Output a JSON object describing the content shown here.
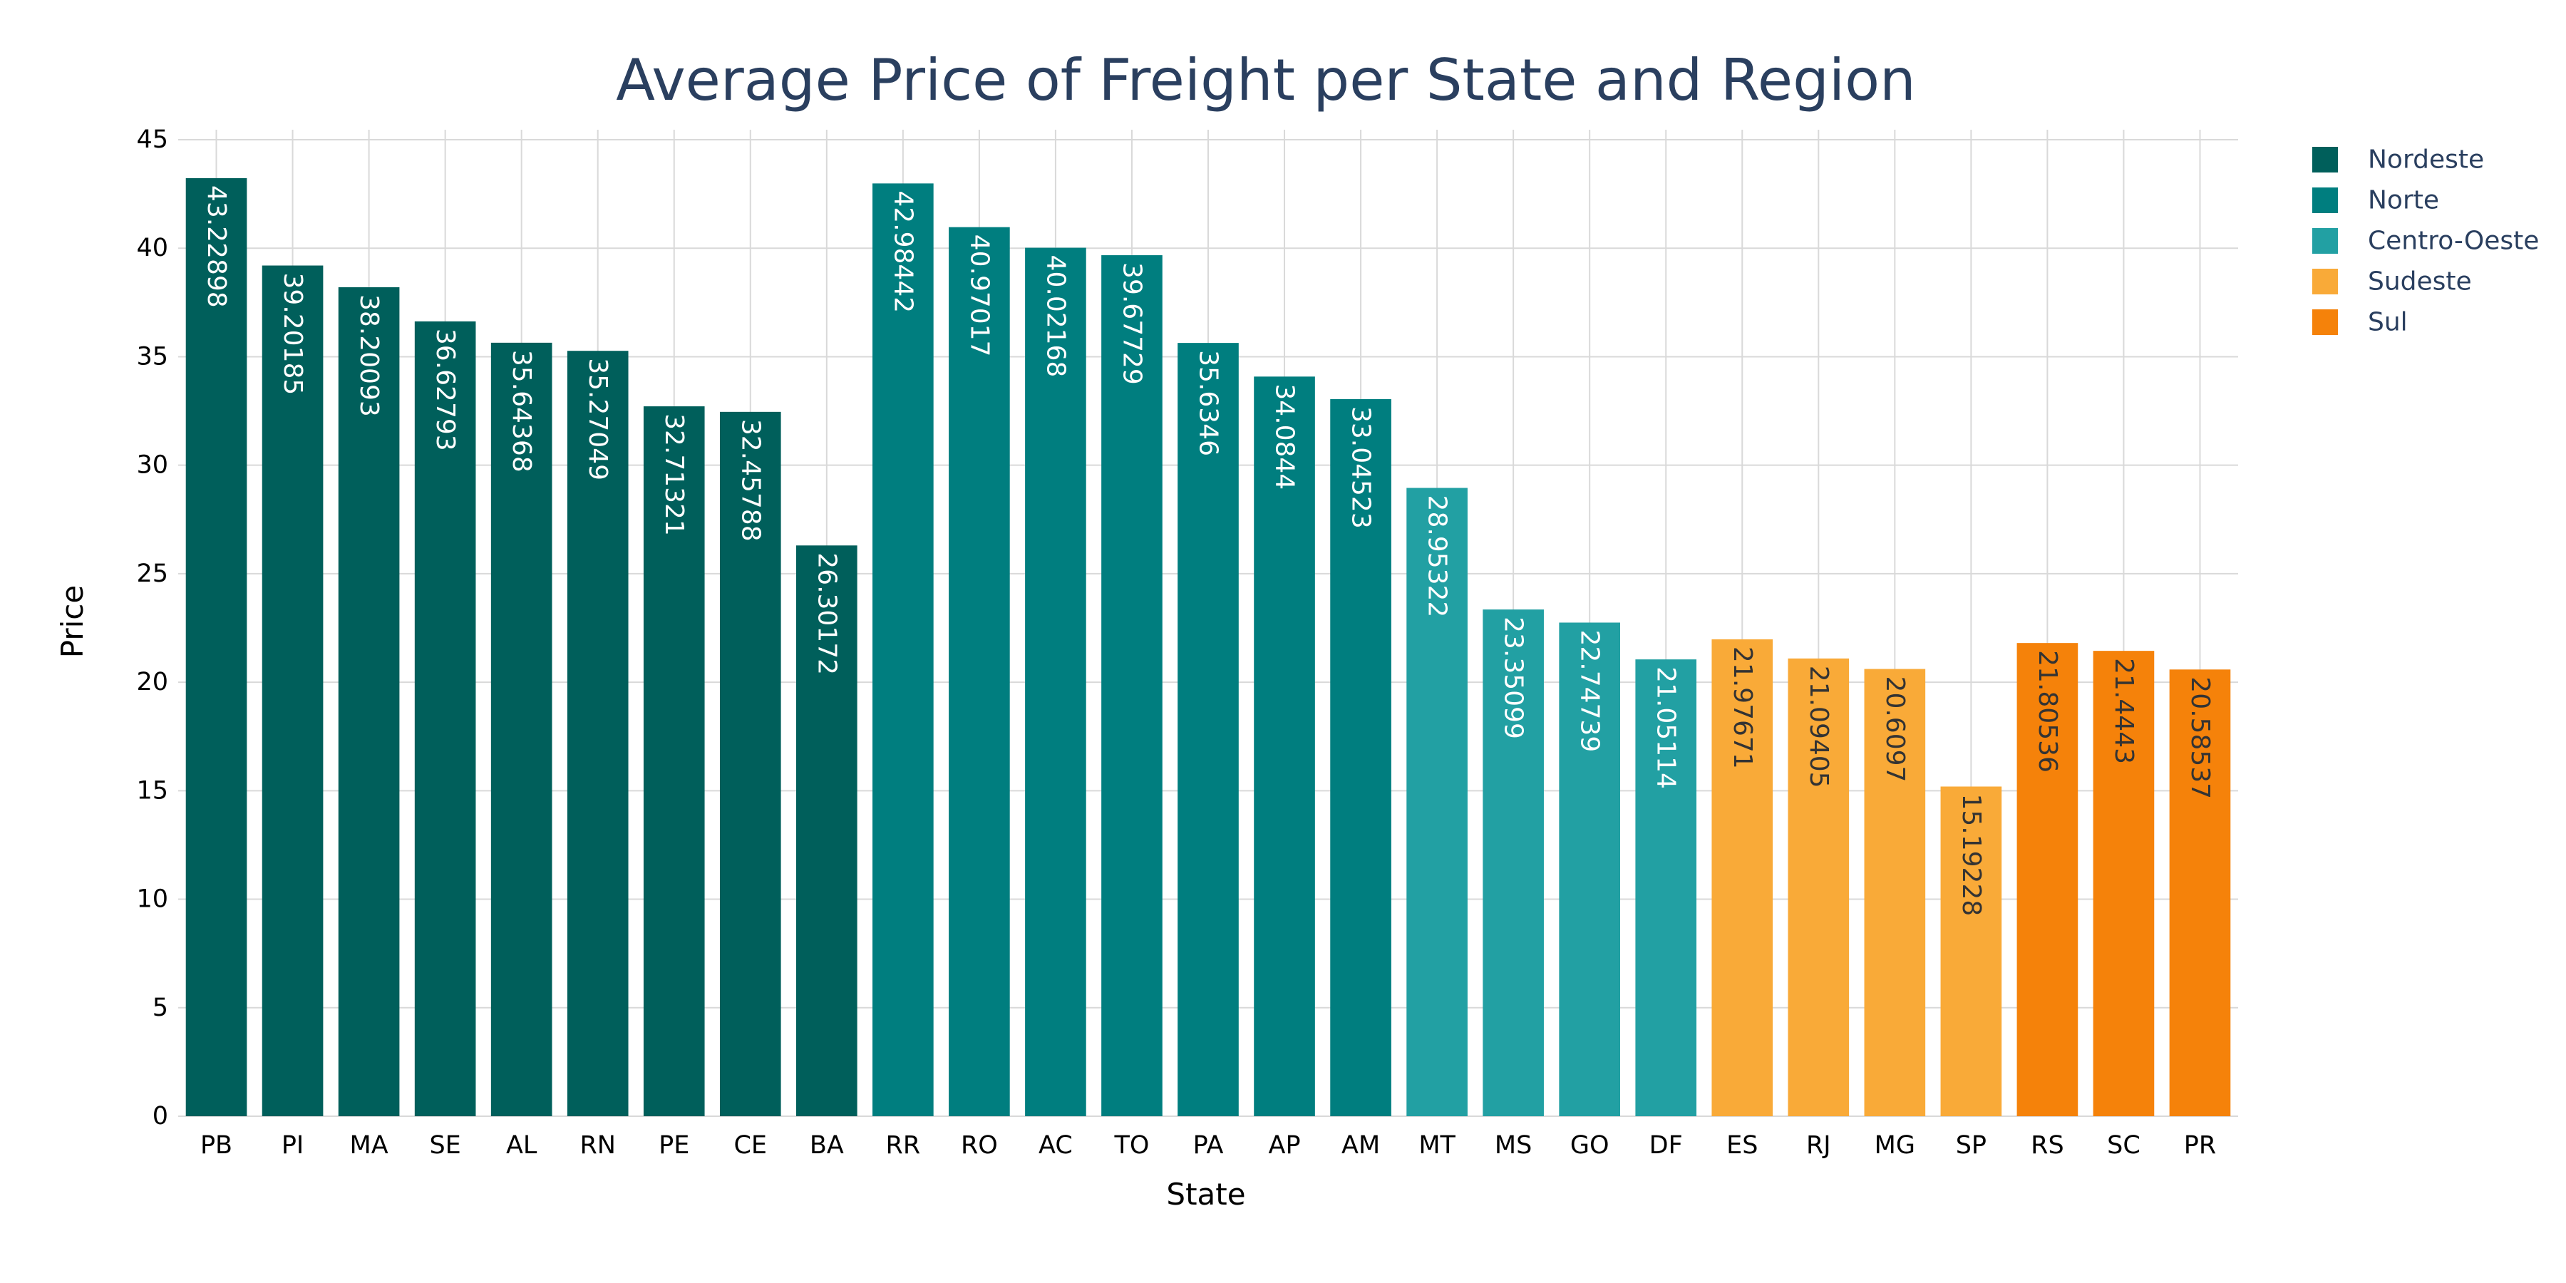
{
  "chart_data": {
    "type": "bar",
    "title": "Average Price of Freight per State and Region",
    "xlabel": "State",
    "ylabel": "Price",
    "ylim": [
      0,
      45
    ],
    "yticks": [
      0,
      5,
      10,
      15,
      20,
      25,
      30,
      35,
      40,
      45
    ],
    "grid": true,
    "legend_position": "top-right",
    "series": [
      {
        "name": "Nordeste",
        "color": "#005f5b",
        "label_color": "#ffffff",
        "categories": [
          "PB",
          "PI",
          "MA",
          "SE",
          "AL",
          "RN",
          "PE",
          "CE",
          "BA"
        ],
        "values": [
          43.22898,
          39.20185,
          38.20093,
          36.62793,
          35.64368,
          35.27049,
          32.71321,
          32.45788,
          26.30172
        ],
        "labels": [
          "43.22898",
          "39.20185",
          "38.20093",
          "36.62793",
          "35.64368",
          "35.27049",
          "32.71321",
          "32.45788",
          "26.30172"
        ]
      },
      {
        "name": "Norte",
        "color": "#007e7f",
        "label_color": "#ffffff",
        "categories": [
          "RR",
          "RO",
          "AC",
          "TO",
          "PA",
          "AP",
          "AM"
        ],
        "values": [
          42.98442,
          40.97017,
          40.02168,
          39.67729,
          35.6346,
          34.0844,
          33.04523
        ],
        "labels": [
          "42.98442",
          "40.97017",
          "40.02168",
          "39.67729",
          "35.6346",
          "34.0844",
          "33.04523"
        ]
      },
      {
        "name": "Centro-Oeste",
        "color": "#22a0a3",
        "label_color": "#ffffff",
        "categories": [
          "MT",
          "MS",
          "GO",
          "DF"
        ],
        "values": [
          28.95322,
          23.35099,
          22.74739,
          21.05114
        ],
        "labels": [
          "28.95322",
          "23.35099",
          "22.74739",
          "21.05114"
        ]
      },
      {
        "name": "Sudeste",
        "color": "#f9aa38",
        "label_color": "#333333",
        "categories": [
          "ES",
          "RJ",
          "MG",
          "SP"
        ],
        "values": [
          21.97671,
          21.09405,
          20.6097,
          15.19228
        ],
        "labels": [
          "21.97671",
          "21.09405",
          "20.6097",
          "15.19228"
        ]
      },
      {
        "name": "Sul",
        "color": "#f5820a",
        "label_color": "#333333",
        "categories": [
          "RS",
          "SC",
          "PR"
        ],
        "values": [
          21.80536,
          21.4443,
          20.58537
        ],
        "labels": [
          "21.80536",
          "21.4443",
          "20.58537"
        ]
      }
    ]
  }
}
